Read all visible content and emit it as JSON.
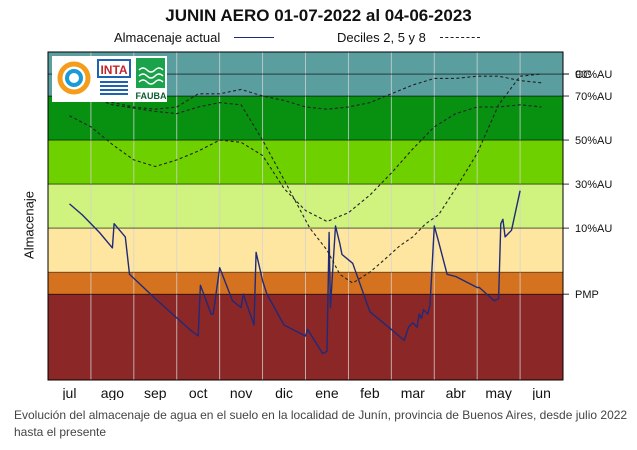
{
  "chart_data": {
    "type": "line",
    "title": "JUNIN AERO 01-07-2022 al 04-06-2023",
    "ylabel": "Almacenaje",
    "x_ticks": [
      "jul",
      "ago",
      "sep",
      "oct",
      "nov",
      "dic",
      "ene",
      "feb",
      "mar",
      "abr",
      "may",
      "jun"
    ],
    "bands": [
      {
        "from": 0,
        "to": 1.0,
        "label": "",
        "color": "#8b2726"
      },
      {
        "from": 1.0,
        "to": 1.5,
        "label": "PMP",
        "color": "#d4721f"
      },
      {
        "from": 1.5,
        "to": 2.5,
        "label": "10%AU",
        "color": "#ffe6a0"
      },
      {
        "from": 2.5,
        "to": 3.5,
        "label": "30%AU",
        "color": "#d0f27e"
      },
      {
        "from": 3.5,
        "to": 4.5,
        "label": "50%AU",
        "color": "#6fd000"
      },
      {
        "from": 4.5,
        "to": 5.5,
        "label": "70%AU",
        "color": "#089010"
      },
      {
        "from": 5.5,
        "to": 6.0,
        "label": "90%AU",
        "color": "#5b9ea0"
      }
    ],
    "band_top_label": "CC",
    "series": [
      {
        "name": "Almacenaje actual",
        "style": "solid",
        "color": "#1f2a7a",
        "x": [
          0,
          0.3,
          0.7,
          1.0,
          1.04,
          1.3,
          1.4,
          2.0,
          2.4,
          2.8,
          3.0,
          3.05,
          3.3,
          3.35,
          3.5,
          3.8,
          4.0,
          4.05,
          4.3,
          4.35,
          4.5,
          4.6,
          5.0,
          5.5,
          5.55,
          5.9,
          6.0,
          6.05,
          6.08,
          6.2,
          6.3,
          6.35,
          6.6,
          7.0,
          7.5,
          7.8,
          7.9,
          8.0,
          8.1,
          8.15,
          8.2,
          8.25,
          8.35,
          8.4,
          8.5,
          8.6,
          8.8,
          9.0,
          9.5,
          9.55,
          9.9,
          10.0,
          10.05,
          10.1,
          10.15,
          10.3,
          10.5
        ],
        "y": [
          3.05,
          2.8,
          2.4,
          2.05,
          2.6,
          2.3,
          1.45,
          0.9,
          0.55,
          0.2,
          0.05,
          1.2,
          0.55,
          0.55,
          1.6,
          0.85,
          0.7,
          1.0,
          0.3,
          1.95,
          1.3,
          1.0,
          0.3,
          0.05,
          0.2,
          -0.35,
          -0.3,
          2.4,
          0.7,
          2.55,
          2.15,
          1.9,
          1.7,
          0.6,
          0.2,
          -0.05,
          0.25,
          0.35,
          0.25,
          0.55,
          0.45,
          0.65,
          0.55,
          0.75,
          2.55,
          2.2,
          1.45,
          1.4,
          1.15,
          1.15,
          0.85,
          0.9,
          2.6,
          2.7,
          2.3,
          2.45,
          3.35
        ]
      },
      {
        "name": "Deciles 2, 5 y 8",
        "style": "dashed",
        "color": "#222222",
        "x": [
          0,
          1.0,
          2.0,
          2.5,
          3.0,
          3.5,
          4.0,
          4.5,
          5.0,
          5.3,
          5.6,
          6.0,
          6.3,
          6.6,
          7.0,
          7.3,
          7.7,
          8.0,
          8.3,
          8.6,
          9.0,
          9.5,
          10.0,
          10.5,
          11.0
        ],
        "y": [
          5.65,
          5.3,
          5.15,
          5.1,
          5.25,
          5.35,
          5.3,
          4.5,
          3.6,
          3.05,
          2.5,
          2.0,
          1.45,
          1.25,
          1.5,
          1.75,
          2.1,
          2.3,
          2.6,
          2.8,
          3.4,
          4.2,
          5.3,
          5.95,
          6.0
        ]
      },
      {
        "name": "",
        "style": "dashed",
        "color": "#222222",
        "x": [
          0,
          0.5,
          1.0,
          1.5,
          2.0,
          2.5,
          3.0,
          3.5,
          4.0,
          4.5,
          5.0,
          5.5,
          6.0,
          6.5,
          7.0,
          7.5,
          8.0,
          8.5,
          9.0,
          9.5,
          10.0,
          10.5,
          11.0
        ],
        "y": [
          5.05,
          4.8,
          4.4,
          4.05,
          3.9,
          4.05,
          4.25,
          4.5,
          4.45,
          4.15,
          3.4,
          2.9,
          2.65,
          2.85,
          3.25,
          3.75,
          4.3,
          4.8,
          5.1,
          5.25,
          5.25,
          5.3,
          5.25
        ]
      },
      {
        "name": "",
        "style": "dashed",
        "color": "#222222",
        "x": [
          0,
          0.5,
          1.0,
          1.5,
          2.0,
          2.5,
          3.0,
          3.5,
          4.0,
          4.5,
          5.0,
          5.5,
          6.0,
          6.5,
          7.0,
          7.5,
          8.0,
          8.5,
          9.0,
          9.5,
          10.0,
          10.5,
          11.0
        ],
        "y": [
          5.65,
          5.45,
          5.35,
          5.25,
          5.2,
          5.25,
          5.55,
          5.55,
          5.65,
          5.5,
          5.4,
          5.25,
          5.2,
          5.25,
          5.35,
          5.55,
          5.75,
          5.9,
          5.9,
          5.95,
          5.95,
          5.85,
          5.8
        ]
      }
    ],
    "xlim": [
      -0.5,
      11.5
    ],
    "ylim": [
      -0.95,
      6.5
    ]
  },
  "legend": {
    "actual_label": "Almacenaje actual",
    "deciles_label": "Deciles 2, 5 y 8"
  },
  "logos": {
    "inta_text": "INTA",
    "fauba_text": "FAUBA"
  },
  "caption": "Evolución del almacenaje de agua en el suelo en la localidad de Junín, provincia de Buenos Aires, desde julio 2022 hasta el presente"
}
